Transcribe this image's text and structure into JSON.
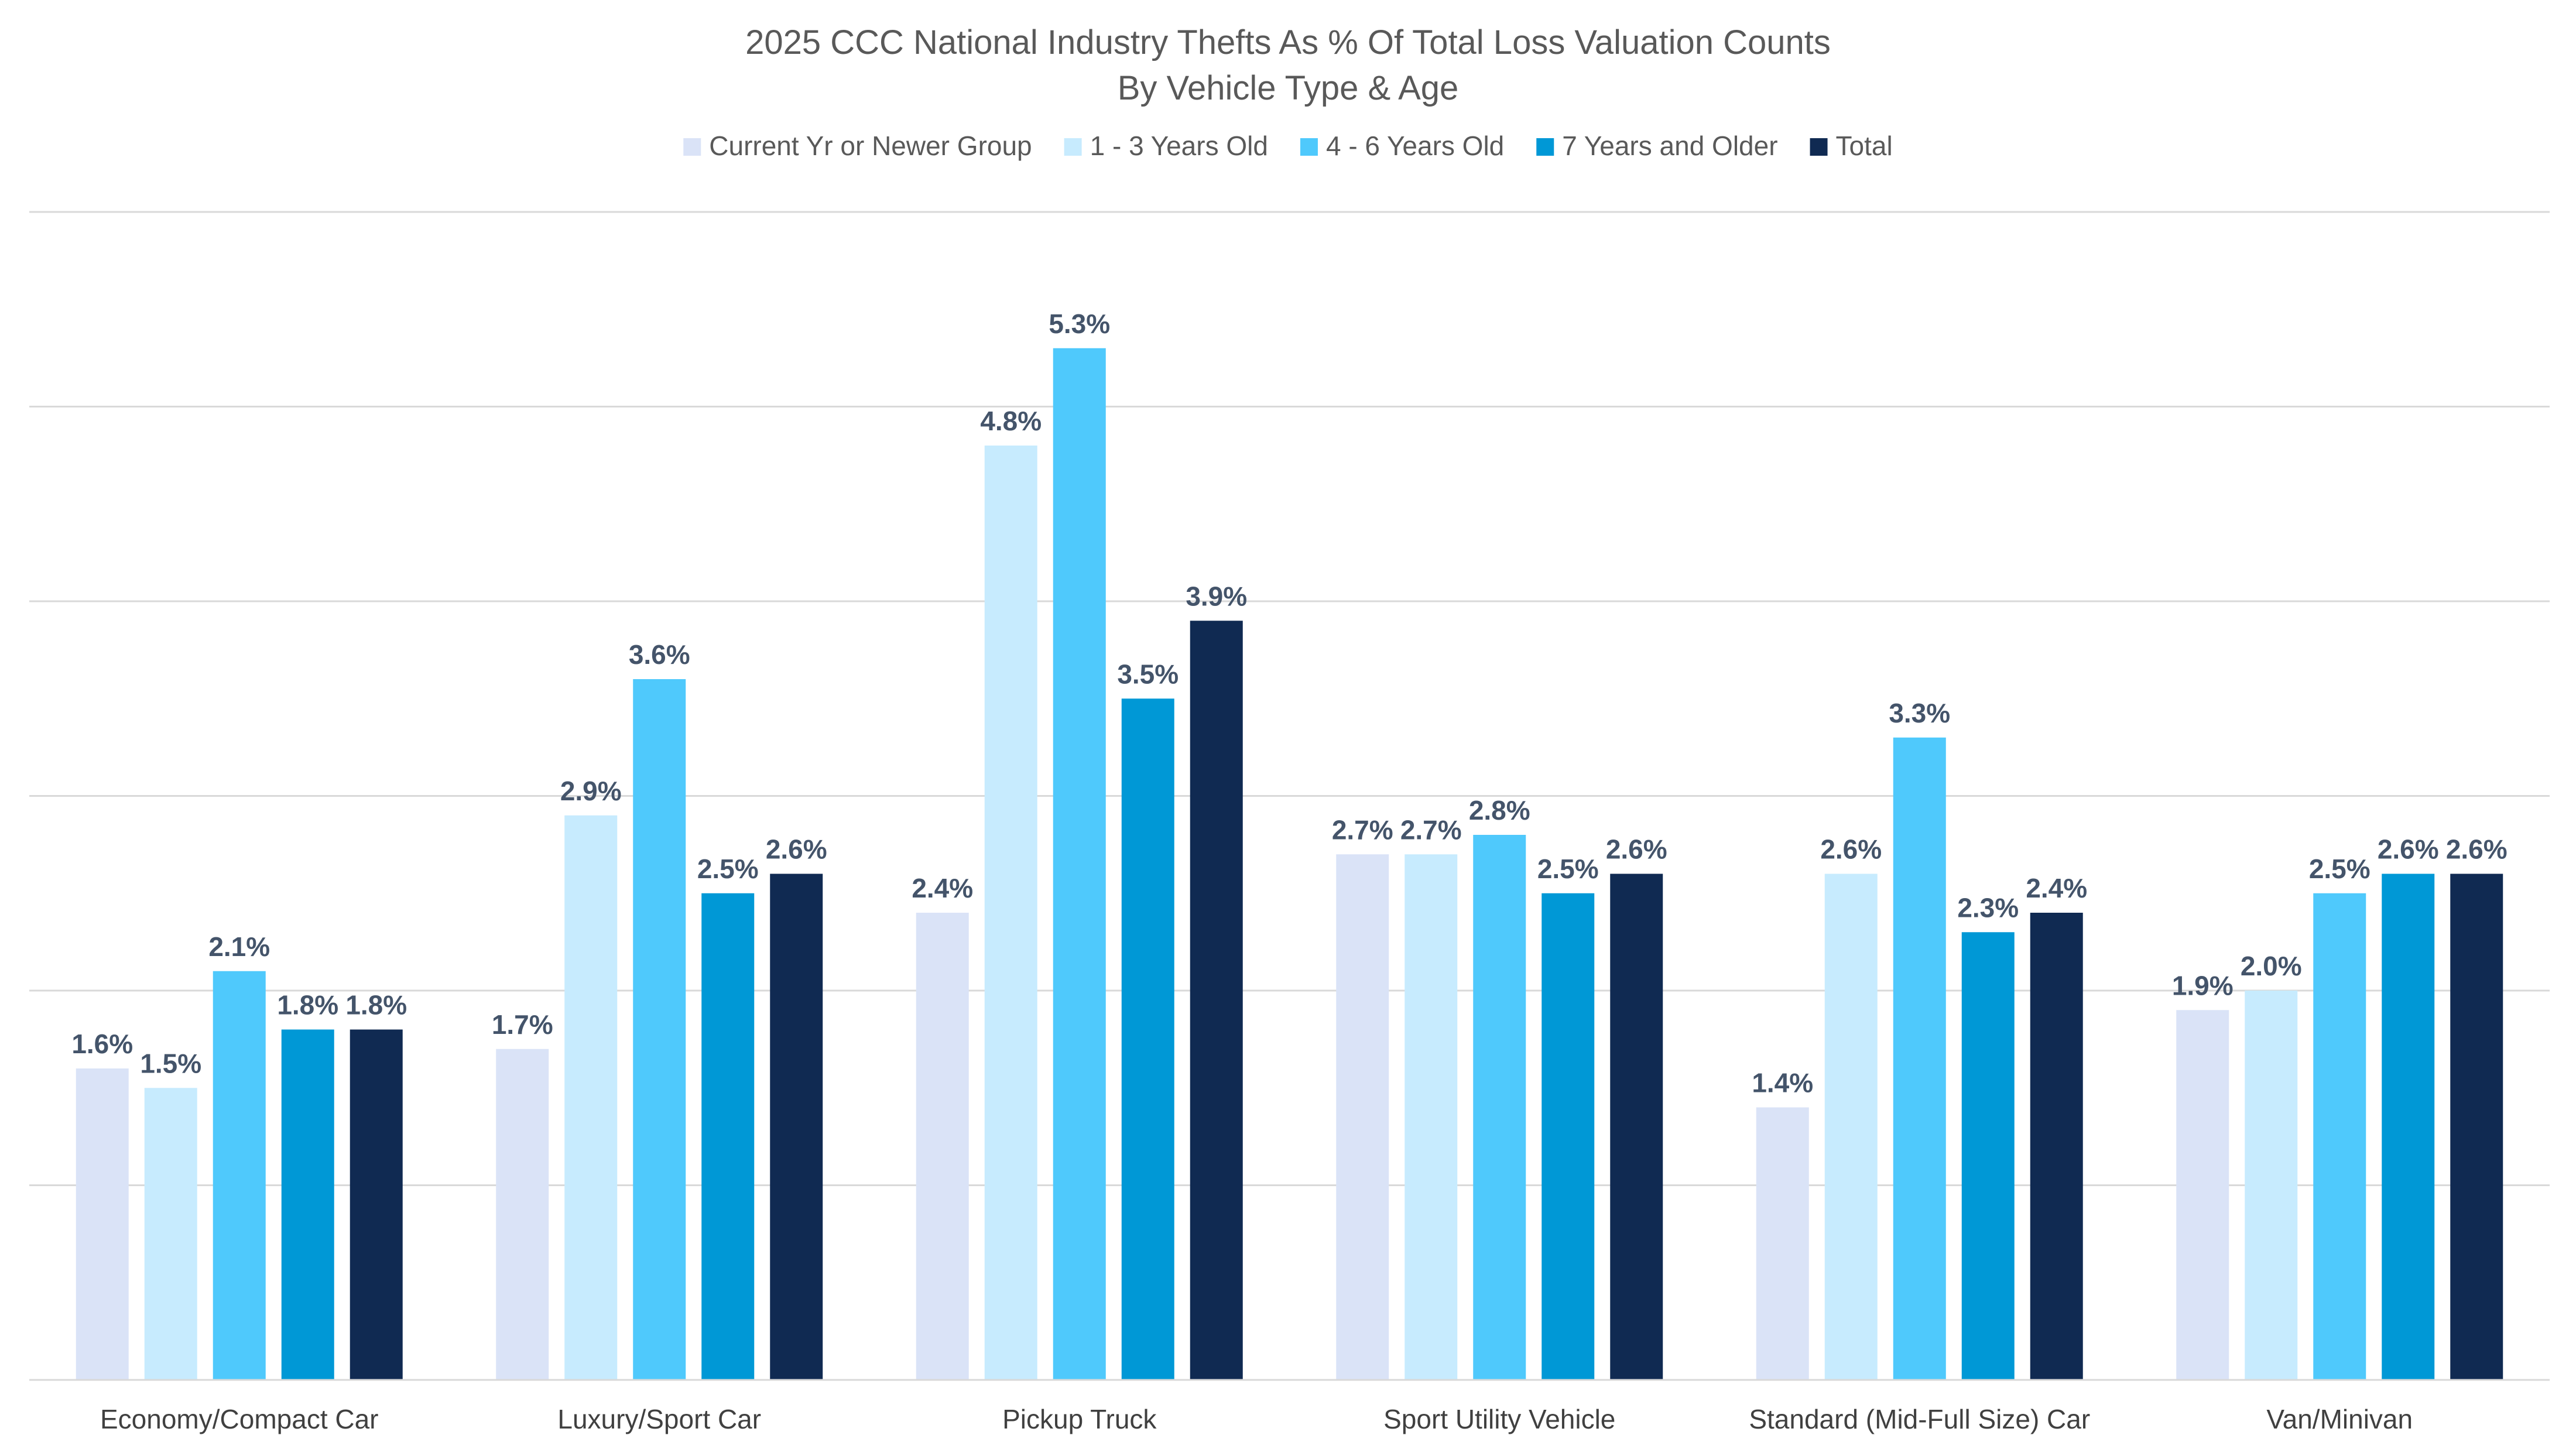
{
  "chart_data": {
    "type": "bar",
    "title": "2025 CCC National Industry Thefts As % Of Total Loss Valuation Counts",
    "subtitle": "By Vehicle Type & Age",
    "xlabel": "",
    "ylabel": "",
    "ylim": [
      0,
      6
    ],
    "grid": true,
    "legend_position": "top",
    "value_format": "percent_1dp",
    "categories": [
      "Economy/Compact Car",
      "Luxury/Sport Car",
      "Pickup Truck",
      "Sport Utility Vehicle",
      "Standard (Mid-Full Size) Car",
      "Van/Minivan"
    ],
    "series": [
      {
        "name": "Current Yr or Newer Group",
        "color": "#DAE3F7",
        "values": [
          1.6,
          1.7,
          2.4,
          2.7,
          1.4,
          1.9
        ],
        "labels": [
          "1.6%",
          "1.7%",
          "2.4%",
          "2.7%",
          "1.4%",
          "1.9%"
        ]
      },
      {
        "name": "1 - 3 Years Old",
        "color": "#C7EBFE",
        "values": [
          1.5,
          2.9,
          4.8,
          2.7,
          2.6,
          2.0
        ],
        "labels": [
          "1.5%",
          "2.9%",
          "4.8%",
          "2.7%",
          "2.6%",
          "2.0%"
        ]
      },
      {
        "name": "4 - 6 Years Old",
        "color": "#4FC9FC",
        "values": [
          2.1,
          3.6,
          5.3,
          2.8,
          3.3,
          2.5
        ],
        "labels": [
          "2.1%",
          "3.6%",
          "5.3%",
          "2.8%",
          "3.3%",
          "2.5%"
        ]
      },
      {
        "name": "7 Years and Older",
        "color": "#0098D6",
        "values": [
          1.8,
          2.5,
          3.5,
          2.5,
          2.3,
          2.6
        ],
        "labels": [
          "1.8%",
          "2.5%",
          "3.5%",
          "2.5%",
          "2.3%",
          "2.6%"
        ]
      },
      {
        "name": "Total",
        "color": "#102A52",
        "values": [
          1.8,
          2.6,
          3.9,
          2.6,
          2.4,
          2.6
        ],
        "labels": [
          "1.8%",
          "2.6%",
          "3.9%",
          "2.6%",
          "2.4%",
          "2.6%"
        ]
      }
    ]
  }
}
